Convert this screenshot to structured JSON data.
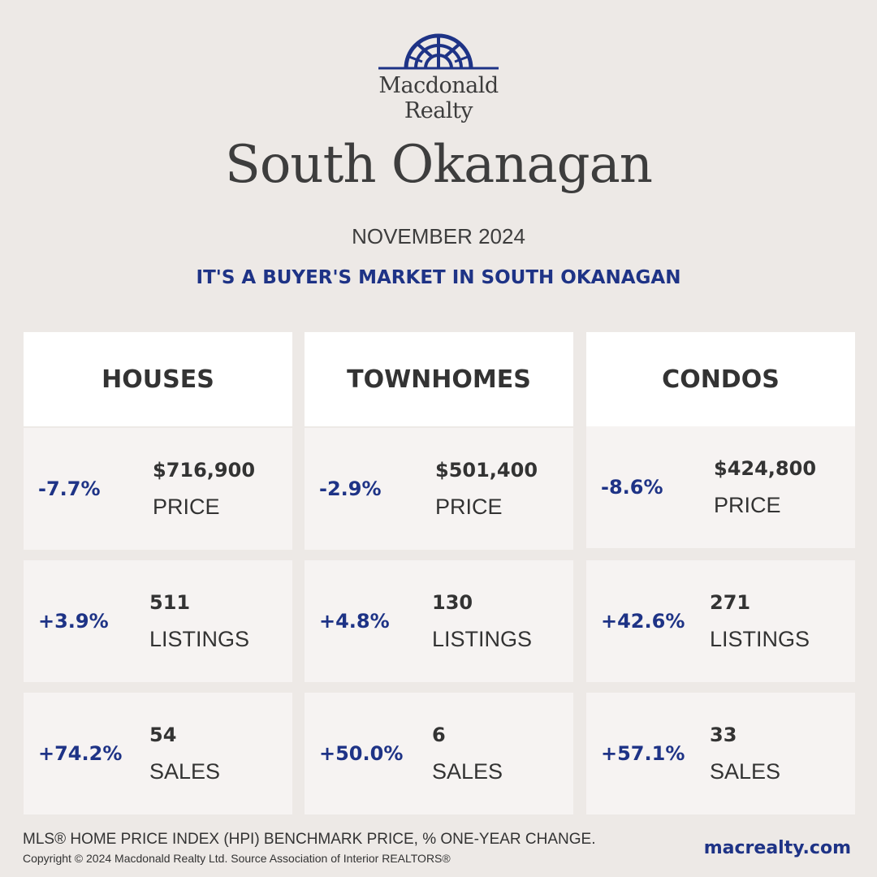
{
  "colors": {
    "background": "#ede9e6",
    "accent": "#1e3386",
    "text": "#333333",
    "card": "#f6f3f2"
  },
  "brand": {
    "line1": "Macdonald",
    "line2": "Realty",
    "icon": "sunburst-logo-icon"
  },
  "title": "South Okanagan",
  "period": "NOVEMBER 2024",
  "tagline": "IT'S A BUYER'S MARKET IN SOUTH OKANAGAN",
  "columns": [
    {
      "heading": "HOUSES",
      "rows": [
        {
          "change": "-7.7%",
          "value": "$716,900",
          "label": "PRICE"
        },
        {
          "change": "+3.9%",
          "value": "511",
          "label": "LISTINGS"
        },
        {
          "change": "+74.2%",
          "value": "54",
          "label": "SALES"
        }
      ]
    },
    {
      "heading": "TOWNHOMES",
      "rows": [
        {
          "change": "-2.9%",
          "value": "$501,400",
          "label": "PRICE"
        },
        {
          "change": "+4.8%",
          "value": "130",
          "label": "LISTINGS"
        },
        {
          "change": "+50.0%",
          "value": "6",
          "label": "SALES"
        }
      ]
    },
    {
      "heading": "CONDOS",
      "rows": [
        {
          "change": "-8.6%",
          "value": "$424,800",
          "label": "PRICE"
        },
        {
          "change": "+42.6%",
          "value": "271",
          "label": "LISTINGS"
        },
        {
          "change": "+57.1%",
          "value": "33",
          "label": "SALES"
        }
      ]
    }
  ],
  "footer": {
    "note": "MLS® HOME PRICE INDEX (HPI) BENCHMARK PRICE, % ONE-YEAR CHANGE.",
    "copyright": "Copyright © 2024 Macdonald Realty Ltd. Source Association of Interior REALTORS®",
    "website": "macrealty.com"
  }
}
